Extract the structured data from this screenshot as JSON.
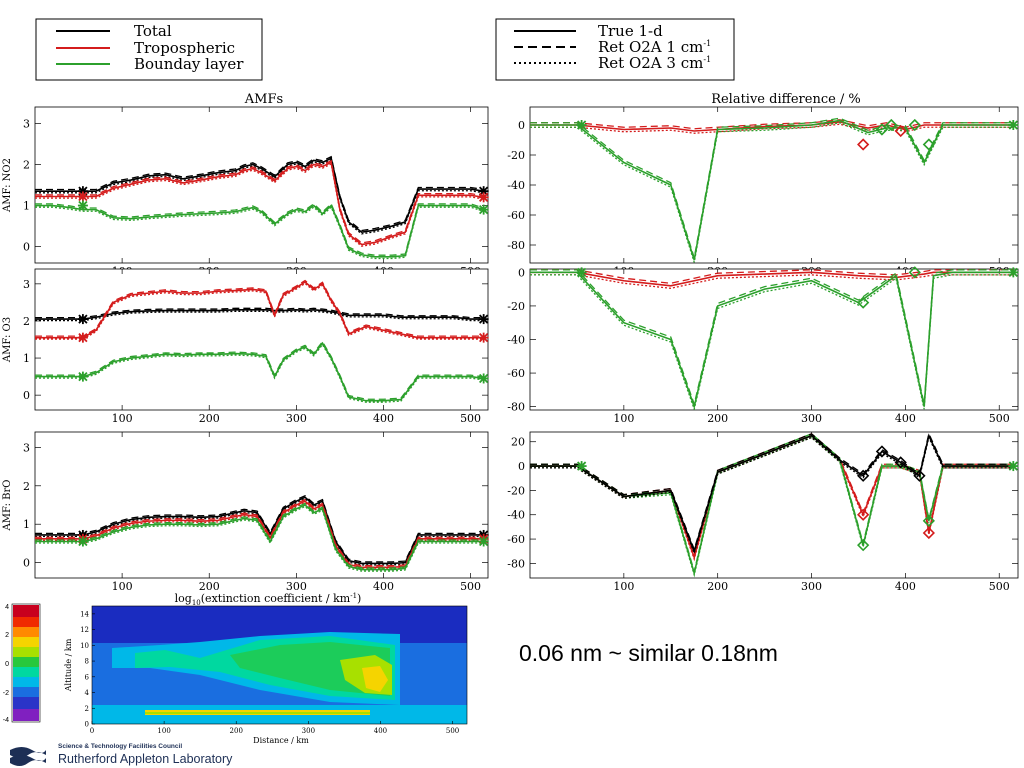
{
  "colors": {
    "total": "#000000",
    "tropospheric": "#d41c1c",
    "boundary_layer": "#2ca02c"
  },
  "legend_left": {
    "items": [
      {
        "label": "Total",
        "color": "#000000"
      },
      {
        "label": "Tropospheric",
        "color": "#d41c1c"
      },
      {
        "label": "Bounday layer",
        "color": "#2ca02c"
      }
    ]
  },
  "legend_right": {
    "items": [
      {
        "label": "True 1-d",
        "style": "solid"
      },
      {
        "label": "Ret O2A 1 cm",
        "sup": "-1",
        "style": "dashed"
      },
      {
        "label": "Ret O2A 3 cm",
        "sup": "-1",
        "style": "dotted"
      }
    ]
  },
  "caption": "0.06 nm ~ similar 0.18nm",
  "logo": {
    "council": "Science & Technology Facilities Council",
    "lab": "Rutherford Appleton Laboratory"
  },
  "chart_data": [
    {
      "type": "line",
      "panel": "amf-no2",
      "title": "AMFs",
      "ylabel": "AMF: NO2",
      "xlim": [
        0,
        520
      ],
      "ylim": [
        -0.4,
        3.4
      ],
      "xticks": [
        100,
        200,
        300,
        400,
        500
      ],
      "yticks": [
        0,
        1,
        2,
        3
      ],
      "x": [
        0,
        20,
        40,
        55,
        70,
        90,
        110,
        130,
        150,
        170,
        190,
        210,
        230,
        240,
        250,
        260,
        275,
        290,
        300,
        310,
        320,
        330,
        340,
        350,
        360,
        375,
        390,
        410,
        425,
        440,
        460,
        480,
        500,
        515
      ],
      "series": [
        {
          "component": "Total",
          "values": [
            1.35,
            1.35,
            1.35,
            1.35,
            1.35,
            1.55,
            1.62,
            1.72,
            1.75,
            1.65,
            1.72,
            1.8,
            1.85,
            1.95,
            2.0,
            1.9,
            1.7,
            2.0,
            2.05,
            1.95,
            2.1,
            2.05,
            2.15,
            1.2,
            0.6,
            0.35,
            0.4,
            0.5,
            0.6,
            1.4,
            1.4,
            1.4,
            1.4,
            1.35
          ]
        },
        {
          "component": "Tropospheric",
          "values": [
            1.22,
            1.22,
            1.22,
            1.22,
            1.22,
            1.42,
            1.52,
            1.62,
            1.65,
            1.55,
            1.62,
            1.7,
            1.75,
            1.85,
            1.9,
            1.8,
            1.6,
            1.9,
            1.95,
            1.85,
            2.0,
            1.95,
            2.05,
            0.9,
            0.3,
            0.05,
            0.1,
            0.25,
            0.35,
            1.25,
            1.25,
            1.25,
            1.25,
            1.2
          ]
        },
        {
          "component": "Bounday layer",
          "values": [
            1.0,
            1.0,
            0.95,
            0.9,
            0.9,
            0.7,
            0.68,
            0.72,
            0.75,
            0.78,
            0.8,
            0.82,
            0.85,
            0.9,
            0.95,
            0.85,
            0.55,
            0.8,
            0.9,
            0.85,
            1.0,
            0.8,
            1.0,
            0.5,
            -0.05,
            -0.2,
            -0.25,
            -0.25,
            -0.22,
            1.0,
            1.0,
            1.0,
            1.0,
            0.9
          ]
        }
      ]
    },
    {
      "type": "line",
      "panel": "amf-o3",
      "ylabel": "AMF: O3",
      "xlim": [
        0,
        520
      ],
      "ylim": [
        -0.4,
        3.4
      ],
      "xticks": [
        100,
        200,
        300,
        400,
        500
      ],
      "yticks": [
        0,
        1,
        2,
        3
      ],
      "x": [
        0,
        20,
        40,
        55,
        70,
        90,
        110,
        130,
        150,
        170,
        190,
        210,
        230,
        250,
        265,
        275,
        285,
        300,
        310,
        320,
        330,
        340,
        350,
        360,
        380,
        400,
        420,
        440,
        460,
        480,
        500,
        515
      ],
      "series": [
        {
          "component": "Total",
          "values": [
            2.05,
            2.05,
            2.05,
            2.05,
            2.1,
            2.2,
            2.25,
            2.27,
            2.28,
            2.28,
            2.28,
            2.28,
            2.3,
            2.3,
            2.3,
            2.28,
            2.28,
            2.3,
            2.28,
            2.3,
            2.28,
            2.25,
            2.2,
            2.15,
            2.15,
            2.15,
            2.1,
            2.1,
            2.1,
            2.1,
            2.05,
            2.05
          ]
        },
        {
          "component": "Tropospheric",
          "values": [
            1.55,
            1.55,
            1.55,
            1.55,
            1.75,
            2.5,
            2.7,
            2.75,
            2.8,
            2.75,
            2.75,
            2.8,
            2.82,
            2.85,
            2.8,
            2.15,
            2.7,
            2.9,
            3.05,
            2.85,
            3.0,
            2.55,
            2.2,
            1.65,
            1.85,
            1.75,
            1.65,
            1.55,
            1.55,
            1.55,
            1.55,
            1.55
          ]
        },
        {
          "component": "Bounday layer",
          "values": [
            0.5,
            0.5,
            0.5,
            0.5,
            0.6,
            0.9,
            1.0,
            1.05,
            1.1,
            1.08,
            1.1,
            1.1,
            1.12,
            1.1,
            1.05,
            0.5,
            0.95,
            1.2,
            1.3,
            1.1,
            1.4,
            1.0,
            0.5,
            -0.05,
            -0.15,
            -0.15,
            -0.12,
            0.5,
            0.5,
            0.5,
            0.5,
            0.45
          ]
        }
      ]
    },
    {
      "type": "line",
      "panel": "amf-bro",
      "ylabel": "AMF: BrO",
      "xlabel": "log10(extinction coefficient / km-1)",
      "xlim": [
        0,
        520
      ],
      "ylim": [
        -0.4,
        3.4
      ],
      "xticks": [
        100,
        200,
        300,
        400,
        500
      ],
      "yticks": [
        0,
        1,
        2,
        3
      ],
      "x": [
        0,
        20,
        40,
        55,
        70,
        90,
        110,
        130,
        150,
        170,
        190,
        210,
        230,
        240,
        255,
        270,
        285,
        300,
        310,
        320,
        330,
        345,
        360,
        375,
        390,
        410,
        425,
        440,
        460,
        480,
        500,
        515
      ],
      "series": [
        {
          "component": "Total",
          "values": [
            0.72,
            0.72,
            0.72,
            0.72,
            0.8,
            1.0,
            1.12,
            1.18,
            1.2,
            1.2,
            1.18,
            1.2,
            1.3,
            1.35,
            1.3,
            0.75,
            1.4,
            1.6,
            1.7,
            1.5,
            1.6,
            0.55,
            0.05,
            -0.02,
            -0.02,
            -0.02,
            0.0,
            0.72,
            0.72,
            0.72,
            0.72,
            0.72
          ]
        },
        {
          "component": "Tropospheric",
          "values": [
            0.62,
            0.62,
            0.62,
            0.62,
            0.7,
            0.9,
            1.02,
            1.08,
            1.1,
            1.1,
            1.08,
            1.1,
            1.2,
            1.25,
            1.2,
            0.65,
            1.3,
            1.5,
            1.6,
            1.4,
            1.5,
            0.45,
            -0.05,
            -0.12,
            -0.12,
            -0.12,
            -0.1,
            0.62,
            0.62,
            0.62,
            0.62,
            0.62
          ]
        },
        {
          "component": "Bounday layer",
          "values": [
            0.55,
            0.55,
            0.55,
            0.55,
            0.62,
            0.8,
            0.92,
            0.98,
            1.0,
            1.0,
            0.98,
            1.0,
            1.1,
            1.15,
            1.1,
            0.55,
            1.2,
            1.4,
            1.5,
            1.3,
            1.4,
            0.35,
            -0.1,
            -0.18,
            -0.18,
            -0.18,
            -0.15,
            0.55,
            0.55,
            0.55,
            0.55,
            0.55
          ]
        }
      ]
    },
    {
      "type": "line",
      "panel": "reldiff-no2",
      "title": "Relative difference / %",
      "xlim": [
        0,
        520
      ],
      "ylim": [
        -92,
        12
      ],
      "xticks": [
        100,
        200,
        300,
        400,
        500
      ],
      "yticks": [
        0,
        -20,
        -40,
        -60,
        -80
      ],
      "x": [
        0,
        50,
        100,
        150,
        175,
        200,
        250,
        300,
        330,
        360,
        380,
        400,
        420,
        440,
        480,
        515
      ],
      "series": [
        {
          "component": "Tropospheric",
          "values": [
            0,
            0,
            -3,
            -2,
            -4,
            -3,
            -1,
            0,
            2,
            -2,
            0,
            -3,
            0,
            0,
            0,
            0
          ]
        },
        {
          "component": "Bounday layer",
          "values": [
            0,
            0,
            -25,
            -40,
            -90,
            -3,
            -2,
            0,
            3,
            -5,
            -2,
            -2,
            -25,
            0,
            0,
            0
          ]
        }
      ]
    },
    {
      "type": "line",
      "panel": "reldiff-o3",
      "xlim": [
        0,
        520
      ],
      "ylim": [
        -82,
        2
      ],
      "xticks": [
        100,
        200,
        300,
        400,
        500
      ],
      "yticks": [
        0,
        -20,
        -40,
        -60,
        -80
      ],
      "x": [
        0,
        50,
        100,
        150,
        175,
        200,
        250,
        300,
        350,
        390,
        420,
        430,
        450,
        515
      ],
      "series": [
        {
          "component": "Tropospheric",
          "values": [
            0,
            0,
            -5,
            -8,
            -5,
            -2,
            -1,
            0,
            -2,
            -3,
            -1,
            0,
            0,
            0
          ]
        },
        {
          "component": "Bounday layer",
          "values": [
            0,
            0,
            -30,
            -40,
            -80,
            -20,
            -10,
            -5,
            -18,
            -2,
            -80,
            -2,
            0,
            0
          ]
        }
      ]
    },
    {
      "type": "line",
      "panel": "reldiff-bro",
      "xlim": [
        0,
        520
      ],
      "ylim": [
        -92,
        28
      ],
      "xticks": [
        100,
        200,
        300,
        400,
        500
      ],
      "yticks": [
        20,
        0,
        -20,
        -40,
        -60,
        -80
      ],
      "x": [
        0,
        50,
        100,
        150,
        175,
        200,
        250,
        300,
        330,
        355,
        375,
        395,
        415,
        425,
        440,
        480,
        515
      ],
      "series": [
        {
          "component": "Tropospheric",
          "values": [
            0,
            0,
            -25,
            -20,
            -75,
            -5,
            10,
            25,
            5,
            -40,
            0,
            0,
            -5,
            -55,
            0,
            0,
            0
          ]
        },
        {
          "component": "Bounday layer",
          "values": [
            0,
            0,
            -25,
            -22,
            -88,
            -5,
            10,
            25,
            5,
            -65,
            0,
            0,
            -5,
            -45,
            0,
            0,
            0
          ]
        },
        {
          "component": "Total",
          "values": [
            0,
            0,
            -25,
            -20,
            -70,
            -5,
            10,
            25,
            5,
            -8,
            12,
            3,
            -8,
            25,
            0,
            0,
            0
          ]
        }
      ]
    },
    {
      "type": "heatmap",
      "panel": "extinction-curtain",
      "xlabel": "Distance / km",
      "ylabel": "Altitude / km",
      "xlim": [
        0,
        520
      ],
      "ylim": [
        0,
        15
      ],
      "xticks": [
        0,
        100,
        200,
        300,
        400,
        500
      ],
      "yticks": [
        0,
        2,
        4,
        6,
        8,
        10,
        12,
        14
      ],
      "colorbar_ticks": [
        4,
        2,
        0,
        -2,
        -4
      ]
    }
  ]
}
